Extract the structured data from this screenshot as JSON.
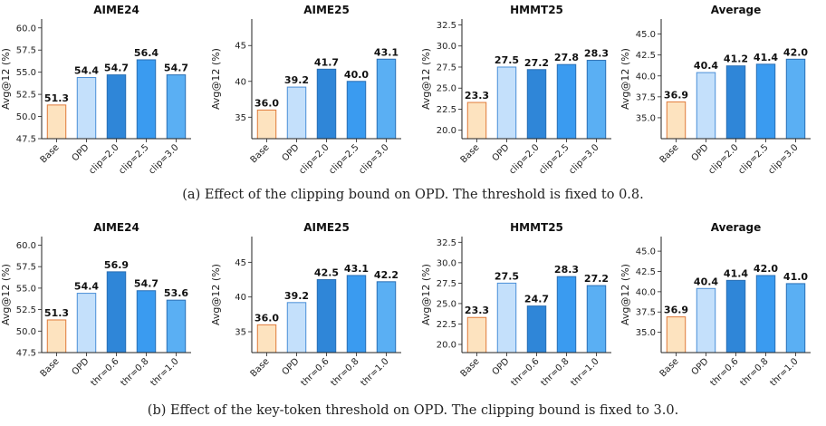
{
  "colors": {
    "base_fill": "#fde3bf",
    "base_edge": "#e07a3a",
    "opd_fill": "#c4e0fb",
    "opd_edge": "#4a8fd8",
    "series_fills": [
      "#2f86d8",
      "#3a9bf0",
      "#5aaff3"
    ],
    "series_edge": "#2a6fb5"
  },
  "ylabel": "Avg@12 (%)",
  "captions": {
    "a": "(a) Effect of the clipping bound on OPD. The threshold is fixed to 0.8.",
    "b": "(b) Effect of the key-token threshold on OPD. The clipping bound is fixed to 3.0."
  },
  "chart_data": [
    {
      "type": "bar",
      "row": "a",
      "title": "AIME24",
      "categories": [
        "Base",
        "OPD",
        "clip=2.0",
        "clip=2.5",
        "clip=3.0"
      ],
      "values": [
        51.3,
        54.4,
        54.7,
        56.4,
        54.7
      ],
      "ylim": [
        47.5,
        61.0
      ],
      "yticks": [
        "47.5",
        "50.0",
        "52.5",
        "55.0",
        "57.5",
        "60.0"
      ]
    },
    {
      "type": "bar",
      "row": "a",
      "title": "AIME25",
      "categories": [
        "Base",
        "OPD",
        "clip=2.0",
        "clip=2.5",
        "clip=3.0"
      ],
      "values": [
        36.0,
        39.2,
        41.7,
        40.0,
        43.1
      ],
      "ylim": [
        32.0,
        48.7
      ],
      "yticks": [
        "35",
        "40",
        "45"
      ]
    },
    {
      "type": "bar",
      "row": "a",
      "title": "HMMT25",
      "categories": [
        "Base",
        "OPD",
        "clip=2.0",
        "clip=2.5",
        "clip=3.0"
      ],
      "values": [
        23.3,
        27.5,
        27.2,
        27.8,
        28.3
      ],
      "ylim": [
        19.0,
        33.2
      ],
      "yticks": [
        "20.0",
        "22.5",
        "25.0",
        "27.5",
        "30.0",
        "32.5"
      ]
    },
    {
      "type": "bar",
      "row": "a",
      "title": "Average",
      "categories": [
        "Base",
        "OPD",
        "clip=2.0",
        "clip=2.5",
        "clip=3.0"
      ],
      "values": [
        36.9,
        40.4,
        41.2,
        41.4,
        42.0
      ],
      "ylim": [
        32.5,
        46.8
      ],
      "yticks": [
        "35.0",
        "37.5",
        "40.0",
        "42.5",
        "45.0"
      ]
    },
    {
      "type": "bar",
      "row": "b",
      "title": "AIME24",
      "categories": [
        "Base",
        "OPD",
        "thr=0.6",
        "thr=0.8",
        "thr=1.0"
      ],
      "values": [
        51.3,
        54.4,
        56.9,
        54.7,
        53.6
      ],
      "ylim": [
        47.5,
        61.0
      ],
      "yticks": [
        "47.5",
        "50.0",
        "52.5",
        "55.0",
        "57.5",
        "60.0"
      ]
    },
    {
      "type": "bar",
      "row": "b",
      "title": "AIME25",
      "categories": [
        "Base",
        "OPD",
        "thr=0.6",
        "thr=0.8",
        "thr=1.0"
      ],
      "values": [
        36.0,
        39.2,
        42.5,
        43.1,
        42.2
      ],
      "ylim": [
        32.0,
        48.7
      ],
      "yticks": [
        "35",
        "40",
        "45"
      ]
    },
    {
      "type": "bar",
      "row": "b",
      "title": "HMMT25",
      "categories": [
        "Base",
        "OPD",
        "thr=0.6",
        "thr=0.8",
        "thr=1.0"
      ],
      "values": [
        23.3,
        27.5,
        24.7,
        28.3,
        27.2
      ],
      "ylim": [
        19.0,
        33.2
      ],
      "yticks": [
        "20.0",
        "22.5",
        "25.0",
        "27.5",
        "30.0",
        "32.5"
      ]
    },
    {
      "type": "bar",
      "row": "b",
      "title": "Average",
      "categories": [
        "Base",
        "OPD",
        "thr=0.6",
        "thr=0.8",
        "thr=1.0"
      ],
      "values": [
        36.9,
        40.4,
        41.4,
        42.0,
        41.0
      ],
      "ylim": [
        32.5,
        46.8
      ],
      "yticks": [
        "35.0",
        "37.5",
        "40.0",
        "42.5",
        "45.0"
      ]
    }
  ]
}
